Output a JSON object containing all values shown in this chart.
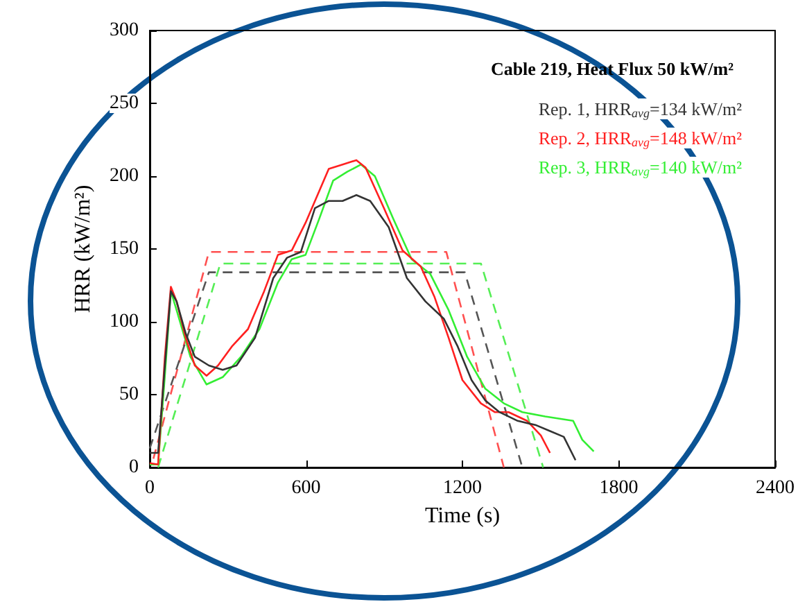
{
  "chart_data": {
    "type": "line",
    "title": "Cable 219, Heat Flux 50 kW/m²",
    "xlabel": "Time (s)",
    "ylabel": "HRR (kW/m²)",
    "xlim": [
      0,
      2400
    ],
    "xticks": [
      0,
      600,
      1200,
      1800,
      2400
    ],
    "ylim": [
      0,
      300
    ],
    "yticks": [
      0,
      50,
      100,
      150,
      200,
      250,
      300
    ],
    "grid": false,
    "legend": "top right",
    "marker": "none",
    "series": [
      {
        "name": "Rep. 1, HRR$_{avg}$=134 kW/m²",
        "color": "#333333",
        "line_style": "solid",
        "x": [
          0,
          32,
          58,
          81,
          103,
          138,
          173,
          227,
          280,
          333,
          404,
          474,
          527,
          580,
          634,
          687,
          740,
          793,
          846,
          917,
          987,
          1058,
          1129,
          1182,
          1235,
          1288,
          1342,
          1412,
          1483,
          1536,
          1589,
          1634
        ],
        "values": [
          10,
          10,
          70,
          121,
          114,
          92,
          76,
          70,
          67,
          70,
          89,
          130,
          144,
          148,
          178,
          183,
          183,
          187,
          183,
          165,
          130,
          114,
          102,
          83,
          60,
          46,
          38,
          32,
          29,
          25,
          21,
          5
        ]
      },
      {
        "name": "Rep. 2, HRR$_{avg}$=148 kW/m²",
        "color": "#ff2020",
        "line_style": "solid",
        "x": [
          0,
          32,
          58,
          81,
          103,
          138,
          173,
          218,
          262,
          315,
          377,
          439,
          492,
          545,
          598,
          651,
          687,
          740,
          793,
          828,
          899,
          970,
          1040,
          1093,
          1147,
          1200,
          1271,
          1324,
          1377,
          1448,
          1501,
          1536
        ],
        "values": [
          3,
          2,
          76,
          124,
          114,
          89,
          70,
          63,
          70,
          83,
          95,
          121,
          146,
          149,
          168,
          190,
          205,
          208,
          211,
          206,
          178,
          149,
          138,
          117,
          89,
          60,
          44,
          38,
          38,
          32,
          22,
          10
        ]
      },
      {
        "name": "Rep. 3, HRR$_{avg}$=140 kW/m²",
        "color": "#33ee33",
        "line_style": "solid",
        "x": [
          0,
          32,
          58,
          81,
          103,
          156,
          218,
          280,
          350,
          421,
          492,
          545,
          598,
          651,
          704,
          758,
          811,
          864,
          934,
          1005,
          1076,
          1147,
          1218,
          1288,
          1359,
          1430,
          1518,
          1625,
          1660,
          1704
        ],
        "values": [
          2,
          2,
          63,
          121,
          108,
          76,
          57,
          62,
          76,
          95,
          127,
          143,
          146,
          171,
          197,
          203,
          208,
          200,
          171,
          143,
          133,
          108,
          76,
          54,
          44,
          38,
          35,
          32,
          19,
          11
        ]
      },
      {
        "color": "#555555",
        "line_style": "dashed",
        "x": [
          0,
          227,
          1209,
          1430
        ],
        "values": [
          13,
          134,
          134,
          0
        ]
      },
      {
        "color": "#ff5050",
        "line_style": "dashed",
        "x": [
          14,
          227,
          1138,
          1359
        ],
        "values": [
          6,
          148,
          148,
          0
        ]
      },
      {
        "color": "#55ee55",
        "line_style": "dashed",
        "x": [
          32,
          271,
          1271,
          1510
        ],
        "values": [
          0,
          140,
          140,
          0
        ]
      }
    ]
  }
}
